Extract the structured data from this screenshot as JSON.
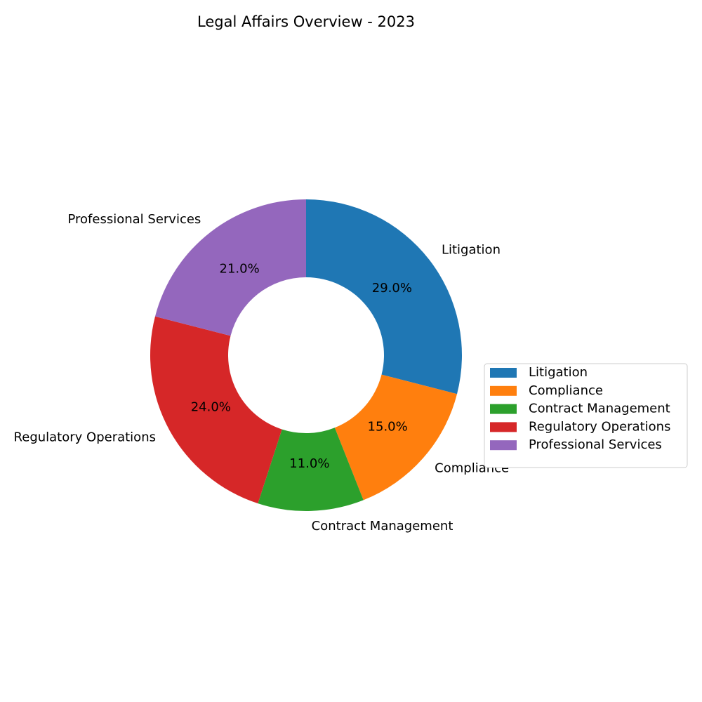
{
  "chart_data": {
    "type": "pie",
    "donut": true,
    "title": "Legal Affairs Overview - 2023",
    "categories": [
      "Litigation",
      "Compliance",
      "Contract Management",
      "Regulatory Operations",
      "Professional Services"
    ],
    "values": [
      29.0,
      15.0,
      11.0,
      24.0,
      21.0
    ],
    "value_labels": [
      "29.0%",
      "15.0%",
      "11.0%",
      "24.0%",
      "21.0%"
    ],
    "colors": [
      "#1f77b4",
      "#ff7f0e",
      "#2ca02c",
      "#d62728",
      "#9467bd"
    ],
    "start_angle_deg": 90,
    "direction": "clockwise",
    "legend": {
      "placement": "right",
      "entries": [
        "Litigation",
        "Compliance",
        "Contract Management",
        "Regulatory Operations",
        "Professional Services"
      ]
    }
  }
}
